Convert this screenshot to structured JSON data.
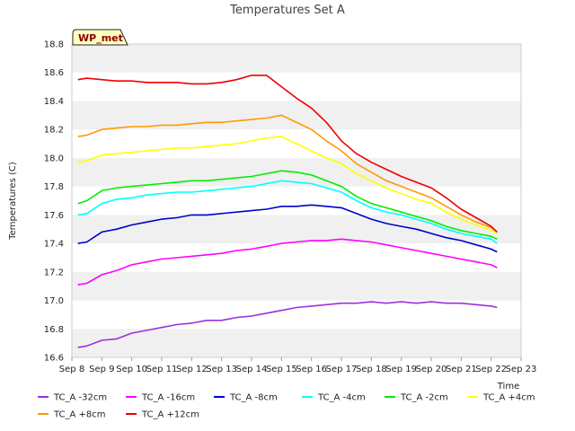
{
  "chart_data": {
    "type": "line",
    "title": "Temperatures Set A",
    "xlabel": "Time",
    "ylabel": "Temperatures (C)",
    "badge": "WP_met",
    "xlim": [
      8,
      23
    ],
    "ylim": [
      16.6,
      18.8
    ],
    "x_ticks": [
      {
        "v": 8,
        "label": "Sep 8"
      },
      {
        "v": 9,
        "label": "Sep 9"
      },
      {
        "v": 10,
        "label": "Sep 10"
      },
      {
        "v": 11,
        "label": "Sep 11"
      },
      {
        "v": 12,
        "label": "Sep 12"
      },
      {
        "v": 13,
        "label": "Sep 13"
      },
      {
        "v": 14,
        "label": "Sep 14"
      },
      {
        "v": 15,
        "label": "Sep 15"
      },
      {
        "v": 16,
        "label": "Sep 16"
      },
      {
        "v": 17,
        "label": "Sep 17"
      },
      {
        "v": 18,
        "label": "Sep 18"
      },
      {
        "v": 19,
        "label": "Sep 19"
      },
      {
        "v": 20,
        "label": "Sep 20"
      },
      {
        "v": 21,
        "label": "Sep 21"
      },
      {
        "v": 22,
        "label": "Sep 22"
      },
      {
        "v": 23,
        "label": "Sep 23"
      }
    ],
    "y_ticks": [
      "16.6",
      "16.8",
      "17.0",
      "17.2",
      "17.4",
      "17.6",
      "17.8",
      "18.0",
      "18.2",
      "18.4",
      "18.6",
      "18.8"
    ],
    "grid": "alternating horizontal bands",
    "legend_position": "bottom",
    "series": [
      {
        "name": "TC_A -32cm",
        "color": "#9b30e0",
        "x": [
          8.2,
          8.5,
          9.0,
          9.5,
          10.0,
          10.5,
          11.0,
          11.5,
          12.0,
          12.5,
          13.0,
          13.5,
          14.0,
          14.5,
          15.0,
          15.5,
          16.0,
          16.5,
          17.0,
          17.5,
          18.0,
          18.5,
          19.0,
          19.5,
          20.0,
          20.5,
          21.0,
          21.5,
          22.0,
          22.2
        ],
        "y": [
          16.67,
          16.68,
          16.72,
          16.73,
          16.77,
          16.79,
          16.81,
          16.83,
          16.84,
          16.86,
          16.86,
          16.88,
          16.89,
          16.91,
          16.93,
          16.95,
          16.96,
          16.97,
          16.98,
          16.98,
          16.99,
          16.98,
          16.99,
          16.98,
          16.99,
          16.98,
          16.98,
          16.97,
          16.96,
          16.95
        ]
      },
      {
        "name": "TC_A -16cm",
        "color": "#ff00ff",
        "x": [
          8.2,
          8.5,
          9.0,
          9.5,
          10.0,
          10.5,
          11.0,
          11.5,
          12.0,
          12.5,
          13.0,
          13.5,
          14.0,
          14.5,
          15.0,
          15.5,
          16.0,
          16.5,
          17.0,
          17.5,
          18.0,
          18.5,
          19.0,
          19.5,
          20.0,
          20.5,
          21.0,
          21.5,
          22.0,
          22.2
        ],
        "y": [
          17.11,
          17.12,
          17.18,
          17.21,
          17.25,
          17.27,
          17.29,
          17.3,
          17.31,
          17.32,
          17.33,
          17.35,
          17.36,
          17.38,
          17.4,
          17.41,
          17.42,
          17.42,
          17.43,
          17.42,
          17.41,
          17.39,
          17.37,
          17.35,
          17.33,
          17.31,
          17.29,
          17.27,
          17.25,
          17.23
        ]
      },
      {
        "name": "TC_A -8cm",
        "color": "#0000cd",
        "x": [
          8.2,
          8.5,
          9.0,
          9.5,
          10.0,
          10.5,
          11.0,
          11.5,
          12.0,
          12.5,
          13.0,
          13.5,
          14.0,
          14.5,
          15.0,
          15.5,
          16.0,
          16.5,
          17.0,
          17.5,
          18.0,
          18.5,
          19.0,
          19.5,
          20.0,
          20.5,
          21.0,
          21.5,
          22.0,
          22.2
        ],
        "y": [
          17.4,
          17.41,
          17.48,
          17.5,
          17.53,
          17.55,
          17.57,
          17.58,
          17.6,
          17.6,
          17.61,
          17.62,
          17.63,
          17.64,
          17.66,
          17.66,
          17.67,
          17.66,
          17.65,
          17.61,
          17.57,
          17.54,
          17.52,
          17.5,
          17.47,
          17.44,
          17.42,
          17.39,
          17.36,
          17.34
        ]
      },
      {
        "name": "TC_A -4cm",
        "color": "#00ffff",
        "x": [
          8.2,
          8.5,
          9.0,
          9.5,
          10.0,
          10.5,
          11.0,
          11.5,
          12.0,
          12.5,
          13.0,
          13.5,
          14.0,
          14.5,
          15.0,
          15.5,
          16.0,
          16.5,
          17.0,
          17.5,
          18.0,
          18.5,
          19.0,
          19.5,
          20.0,
          20.5,
          21.0,
          21.5,
          22.0,
          22.2
        ],
        "y": [
          17.6,
          17.61,
          17.68,
          17.71,
          17.72,
          17.74,
          17.75,
          17.76,
          17.76,
          17.77,
          17.78,
          17.79,
          17.8,
          17.82,
          17.84,
          17.83,
          17.82,
          17.79,
          17.76,
          17.7,
          17.65,
          17.62,
          17.6,
          17.57,
          17.54,
          17.5,
          17.47,
          17.45,
          17.43,
          17.4
        ]
      },
      {
        "name": "TC_A -2cm",
        "color": "#00ee00",
        "x": [
          8.2,
          8.5,
          9.0,
          9.5,
          10.0,
          10.5,
          11.0,
          11.5,
          12.0,
          12.5,
          13.0,
          13.5,
          14.0,
          14.5,
          15.0,
          15.5,
          16.0,
          16.5,
          17.0,
          17.5,
          18.0,
          18.5,
          19.0,
          19.5,
          20.0,
          20.5,
          21.0,
          21.5,
          22.0,
          22.2
        ],
        "y": [
          17.68,
          17.7,
          17.77,
          17.79,
          17.8,
          17.81,
          17.82,
          17.83,
          17.84,
          17.84,
          17.85,
          17.86,
          17.87,
          17.89,
          17.91,
          17.9,
          17.88,
          17.84,
          17.8,
          17.73,
          17.68,
          17.65,
          17.62,
          17.59,
          17.56,
          17.52,
          17.49,
          17.47,
          17.45,
          17.43
        ]
      },
      {
        "name": "TC_A +4cm",
        "color": "#ffff00",
        "x": [
          8.2,
          8.5,
          9.0,
          9.5,
          10.0,
          10.5,
          11.0,
          11.5,
          12.0,
          12.5,
          13.0,
          13.5,
          14.0,
          14.5,
          15.0,
          15.5,
          16.0,
          16.5,
          17.0,
          17.5,
          18.0,
          18.5,
          19.0,
          19.5,
          20.0,
          20.5,
          21.0,
          21.5,
          22.0,
          22.2
        ],
        "y": [
          17.97,
          17.98,
          18.02,
          18.03,
          18.04,
          18.05,
          18.06,
          18.07,
          18.07,
          18.08,
          18.09,
          18.1,
          18.12,
          18.14,
          18.15,
          18.1,
          18.05,
          18.0,
          17.96,
          17.89,
          17.84,
          17.79,
          17.75,
          17.71,
          17.68,
          17.62,
          17.57,
          17.53,
          17.49,
          17.47
        ]
      },
      {
        "name": "TC_A +8cm",
        "color": "#ff9900",
        "x": [
          8.2,
          8.5,
          9.0,
          9.5,
          10.0,
          10.5,
          11.0,
          11.5,
          12.0,
          12.5,
          13.0,
          13.5,
          14.0,
          14.5,
          15.0,
          15.5,
          16.0,
          16.5,
          17.0,
          17.5,
          18.0,
          18.5,
          19.0,
          19.5,
          20.0,
          20.5,
          21.0,
          21.5,
          22.0,
          22.2
        ],
        "y": [
          18.15,
          18.16,
          18.2,
          18.21,
          18.22,
          18.22,
          18.23,
          18.23,
          18.24,
          18.25,
          18.25,
          18.26,
          18.27,
          18.28,
          18.3,
          18.25,
          18.2,
          18.12,
          18.05,
          17.96,
          17.9,
          17.84,
          17.8,
          17.76,
          17.72,
          17.66,
          17.6,
          17.55,
          17.51,
          17.48
        ]
      },
      {
        "name": "TC_A +12cm",
        "color": "#ee0000",
        "x": [
          8.2,
          8.5,
          9.0,
          9.5,
          10.0,
          10.5,
          11.0,
          11.5,
          12.0,
          12.5,
          13.0,
          13.5,
          14.0,
          14.5,
          15.0,
          15.5,
          16.0,
          16.5,
          17.0,
          17.5,
          18.0,
          18.5,
          19.0,
          19.5,
          20.0,
          20.5,
          21.0,
          21.5,
          22.0,
          22.2
        ],
        "y": [
          18.55,
          18.56,
          18.55,
          18.54,
          18.54,
          18.53,
          18.53,
          18.53,
          18.52,
          18.52,
          18.53,
          18.55,
          18.58,
          18.58,
          18.5,
          18.42,
          18.35,
          18.25,
          18.12,
          18.03,
          17.97,
          17.92,
          17.87,
          17.83,
          17.79,
          17.72,
          17.64,
          17.58,
          17.52,
          17.48
        ]
      }
    ]
  }
}
